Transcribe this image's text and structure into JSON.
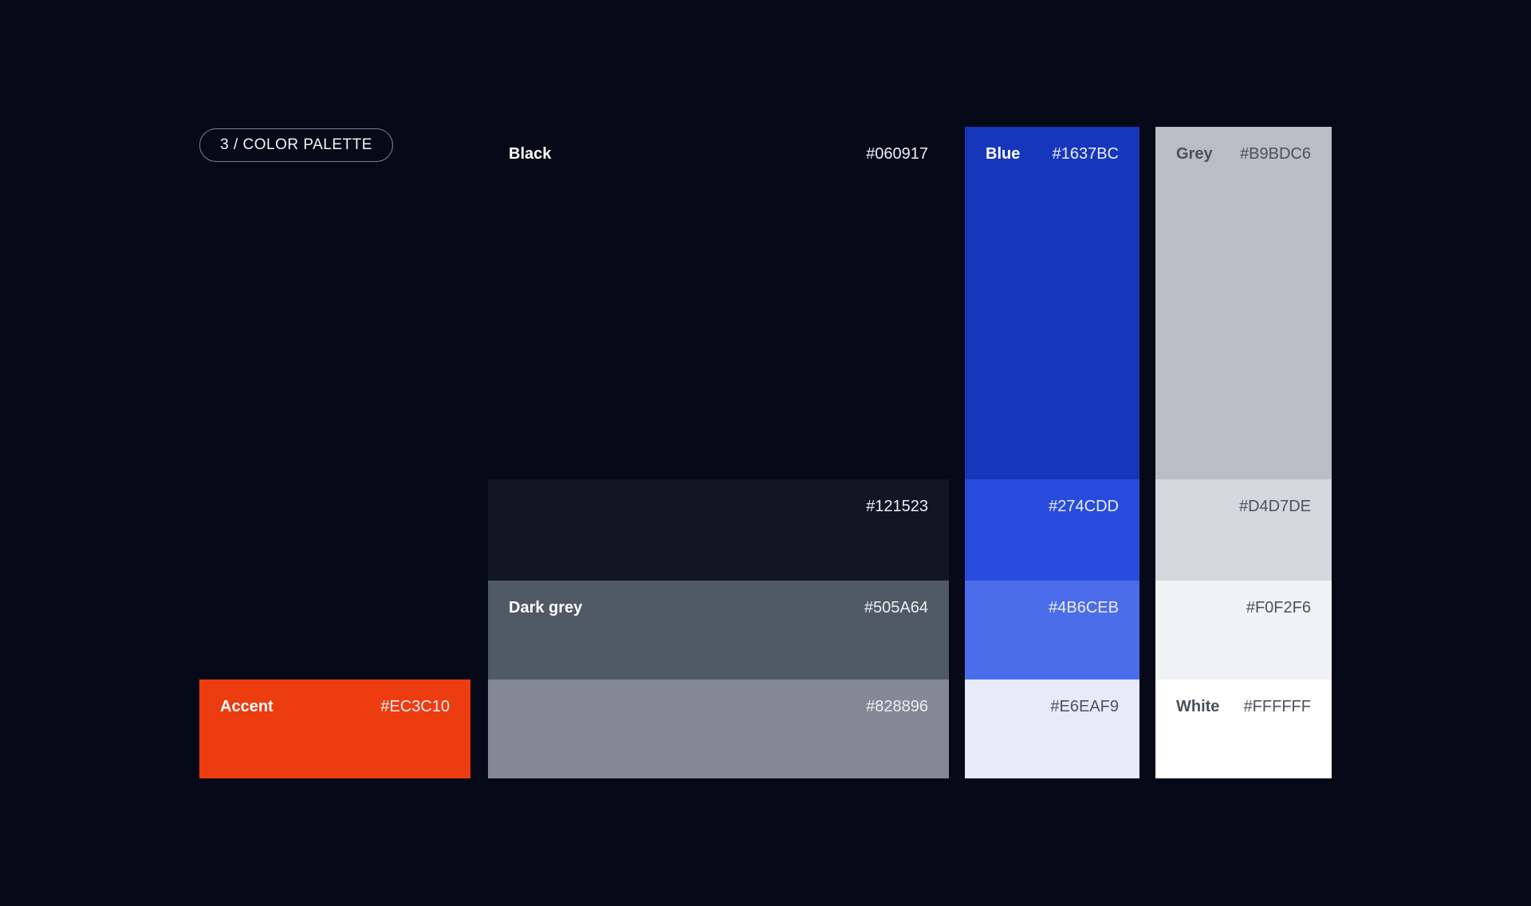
{
  "page": {
    "background": "#060917"
  },
  "badge": {
    "label": "3 / COLOR PALETTE"
  },
  "palette": {
    "accent": {
      "name": "Accent column",
      "swatches": [
        {
          "label": "Accent",
          "hex": "#EC3C10"
        }
      ]
    },
    "black": {
      "name": "Black column",
      "swatches": [
        {
          "label": "Black",
          "hex": "#060917"
        },
        {
          "label": "",
          "hex": "#121523"
        },
        {
          "label": "Dark grey",
          "hex": "#505A64"
        },
        {
          "label": "",
          "hex": "#828896"
        }
      ]
    },
    "blue": {
      "name": "Blue column",
      "swatches": [
        {
          "label": "Blue",
          "hex": "#1637BC"
        },
        {
          "label": "",
          "hex": "#274CDD"
        },
        {
          "label": "",
          "hex": "#4B6CEB"
        },
        {
          "label": "",
          "hex": "#E6EAF9"
        }
      ]
    },
    "grey": {
      "name": "Grey column",
      "swatches": [
        {
          "label": "Grey",
          "hex": "#B9BDC6"
        },
        {
          "label": "",
          "hex": "#D4D7DE"
        },
        {
          "label": "",
          "hex": "#F0F2F6"
        },
        {
          "label": "White",
          "hex": "#FFFFFF"
        }
      ]
    }
  }
}
